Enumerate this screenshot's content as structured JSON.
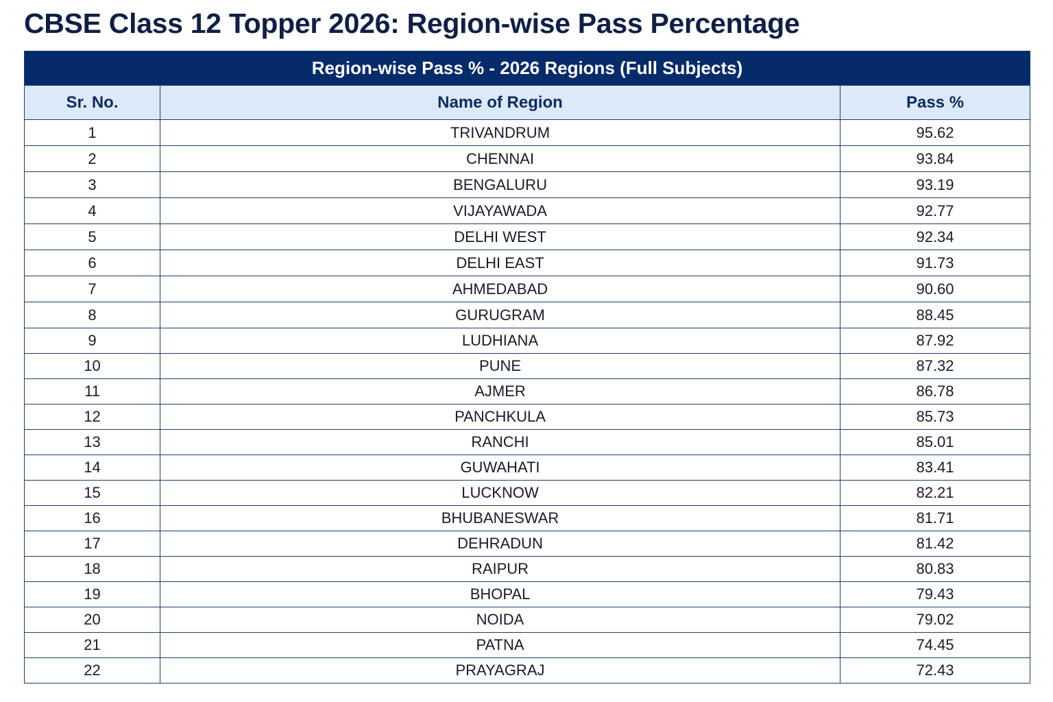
{
  "header": {
    "title": "CBSE Class 12 Topper 2026: Region-wise Pass Percentage"
  },
  "table": {
    "caption": "Region-wise Pass % - 2026 Regions (Full Subjects)",
    "columns": [
      "Sr. No.",
      "Name of Region",
      "Pass %"
    ],
    "rows": [
      [
        "1",
        "TRIVANDRUM",
        "95.62"
      ],
      [
        "2",
        "CHENNAI",
        "93.84"
      ],
      [
        "3",
        "BENGALURU",
        "93.19"
      ],
      [
        "4",
        "VIJAYAWADA",
        "92.77"
      ],
      [
        "5",
        "DELHI WEST",
        "92.34"
      ],
      [
        "6",
        "DELHI EAST",
        "91.73"
      ],
      [
        "7",
        "AHMEDABAD",
        "90.60"
      ],
      [
        "8",
        "GURUGRAM",
        "88.45"
      ],
      [
        "9",
        "LUDHIANA",
        "87.92"
      ],
      [
        "10",
        "PUNE",
        "87.32"
      ],
      [
        "11",
        "AJMER",
        "86.78"
      ],
      [
        "12",
        "PANCHKULA",
        "85.73"
      ],
      [
        "13",
        "RANCHI",
        "85.01"
      ],
      [
        "14",
        "GUWAHATI",
        "83.41"
      ],
      [
        "15",
        "LUCKNOW",
        "82.21"
      ],
      [
        "16",
        "BHUBANESWAR",
        "81.71"
      ],
      [
        "17",
        "DEHRADUN",
        "81.42"
      ],
      [
        "18",
        "RAIPUR",
        "80.83"
      ],
      [
        "19",
        "BHOPAL",
        "79.43"
      ],
      [
        "20",
        "NOIDA",
        "79.02"
      ],
      [
        "21",
        "PATNA",
        "74.45"
      ],
      [
        "22",
        "PRAYAGRAJ",
        "72.43"
      ]
    ]
  }
}
